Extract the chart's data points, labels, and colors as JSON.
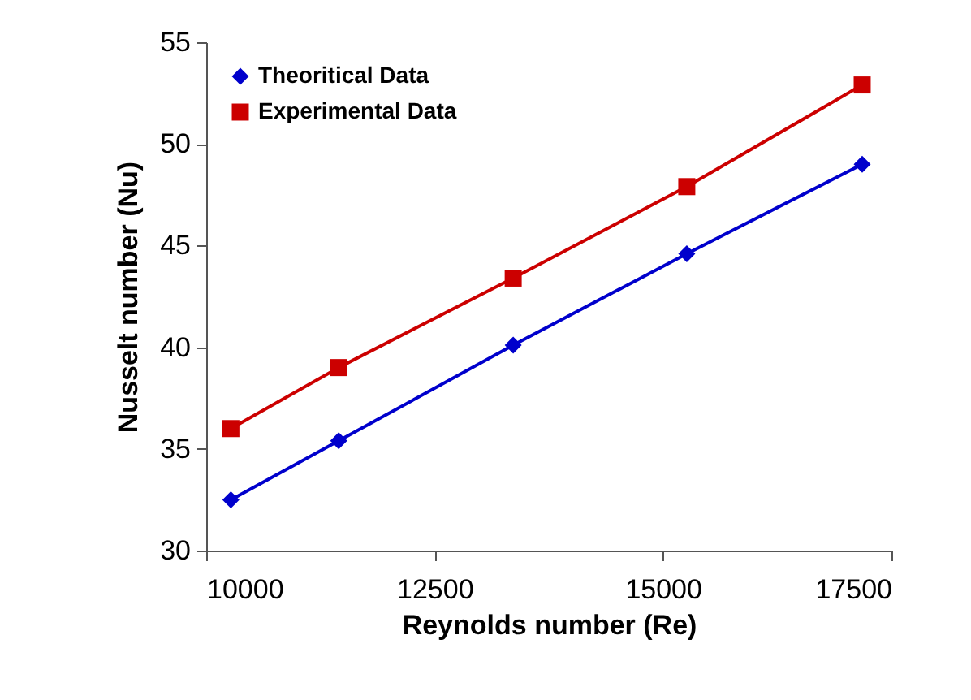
{
  "chart_data": {
    "type": "line",
    "xlabel": "Reynolds number (Re)",
    "ylabel": "Nusselt number (Nu)",
    "xlim": [
      10000,
      17500
    ],
    "xticks": [
      10000,
      12500,
      15000,
      17500
    ],
    "ylim": [
      30,
      55
    ],
    "yticks": [
      30,
      35,
      40,
      45,
      50,
      55
    ],
    "grid": false,
    "legend": "top left",
    "line_style": "solid",
    "series": [
      {
        "name": "Theoritical Data",
        "color": "#0000cc",
        "marker": "diamond",
        "x": [
          10270,
          11450,
          13360,
          15260,
          17180
        ],
        "values": [
          32.5,
          35.4,
          40.1,
          44.6,
          49.0
        ]
      },
      {
        "name": "Experimental Data",
        "color": "#cc0000",
        "marker": "square",
        "x": [
          10270,
          11450,
          13360,
          15260,
          17180
        ],
        "values": [
          36,
          39,
          43.4,
          47.9,
          52.9
        ]
      }
    ]
  }
}
